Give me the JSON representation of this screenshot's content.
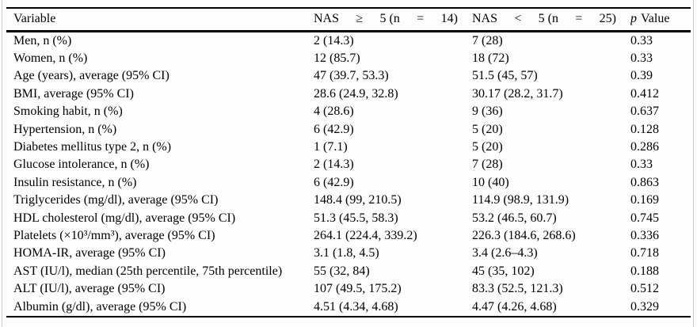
{
  "table": {
    "header": {
      "col1": "Variable",
      "col2_tokens": [
        "NAS",
        "≥",
        "5 (n",
        "=",
        "14)"
      ],
      "col3_tokens": [
        "NAS",
        "<",
        "5 (n",
        "=",
        "25)"
      ],
      "col4_italic": "p",
      "col4_rest": "Value"
    },
    "rows": [
      {
        "variable": "Men, n (%)",
        "nas_ge5": "2 (14.3)",
        "nas_lt5": "7 (28)",
        "p": "0.33"
      },
      {
        "variable": "Women, n (%)",
        "nas_ge5": "12 (85.7)",
        "nas_lt5": "18 (72)",
        "p": "0.33"
      },
      {
        "variable": "Age (years), average (95% CI)",
        "nas_ge5": "47 (39.7, 53.3)",
        "nas_lt5": "51.5 (45, 57)",
        "p": "0.39"
      },
      {
        "variable": "BMI, average (95% CI)",
        "nas_ge5": "28.6 (24.9, 32.8)",
        "nas_lt5": "30.17 (28.2, 31.7)",
        "p": "0.412"
      },
      {
        "variable": "Smoking habit, n (%)",
        "nas_ge5": "4 (28.6)",
        "nas_lt5": "9 (36)",
        "p": "0.637"
      },
      {
        "variable": "Hypertension, n (%)",
        "nas_ge5": "6 (42.9)",
        "nas_lt5": "5 (20)",
        "p": "0.128"
      },
      {
        "variable": "Diabetes mellitus type 2, n (%)",
        "nas_ge5": "1 (7.1)",
        "nas_lt5": "5 (20)",
        "p": "0.286"
      },
      {
        "variable": "Glucose intolerance, n (%)",
        "nas_ge5": "2 (14.3)",
        "nas_lt5": "7 (28)",
        "p": "0.33"
      },
      {
        "variable": "Insulin resistance, n (%)",
        "nas_ge5": "6 (42.9)",
        "nas_lt5": "10 (40)",
        "p": "0.863"
      },
      {
        "variable": "Triglycerides (mg/dl), average (95% CI)",
        "nas_ge5": "148.4 (99, 210.5)",
        "nas_lt5": "114.9 (98.9, 131.9)",
        "p": "0.169"
      },
      {
        "variable": "HDL cholesterol (mg/dl), average (95% CI)",
        "nas_ge5": "51.3 (45.5, 58.3)",
        "nas_lt5": "53.2 (46.5, 60.7)",
        "p": "0.745"
      },
      {
        "variable": "Platelets (×10³/mm³), average (95% CI)",
        "nas_ge5": "264.1 (224.4, 339.2)",
        "nas_lt5": "226.3 (184.6, 268.6)",
        "p": "0.336"
      },
      {
        "variable": "HOMA-IR, average (95% CI)",
        "nas_ge5": "3.1 (1.8, 4.5)",
        "nas_lt5": "3.4 (2.6–4.3)",
        "p": "0.718"
      },
      {
        "variable": "AST (IU/l), median (25th percentile, 75th percentile)",
        "nas_ge5": "55 (32, 84)",
        "nas_lt5": "45 (35, 102)",
        "p": "0.188"
      },
      {
        "variable": "ALT (IU/l), average (95% CI)",
        "nas_ge5": "107 (49.5, 175.2)",
        "nas_lt5": "83.3 (52.5, 121.3)",
        "p": "0.512"
      },
      {
        "variable": "Albumin (g/dl), average (95% CI)",
        "nas_ge5": "4.51 (4.34, 4.68)",
        "nas_lt5": "4.47 (4.26, 4.68)",
        "p": "0.329"
      }
    ]
  }
}
